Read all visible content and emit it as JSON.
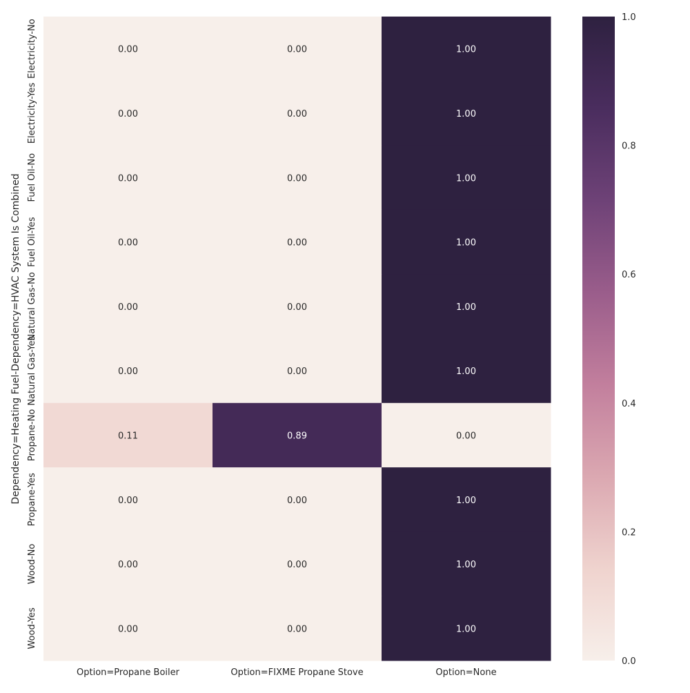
{
  "chart_data": {
    "type": "heatmap",
    "ylabel": "Dependency=Heating Fuel-Dependency=HVAC System Is Combined",
    "xlabel": "",
    "columns": [
      "Option=Propane Boiler",
      "Option=FIXME Propane Stove",
      "Option=None"
    ],
    "rows": [
      "Electricity-No",
      "Electricity-Yes",
      "Fuel Oil-No",
      "Fuel Oil-Yes",
      "Natural Gas-No",
      "Natural Gas-Yes",
      "Propane-No",
      "Propane-Yes",
      "Wood-No",
      "Wood-Yes"
    ],
    "values": [
      [
        0.0,
        0.0,
        1.0
      ],
      [
        0.0,
        0.0,
        1.0
      ],
      [
        0.0,
        0.0,
        1.0
      ],
      [
        0.0,
        0.0,
        1.0
      ],
      [
        0.0,
        0.0,
        1.0
      ],
      [
        0.0,
        0.0,
        1.0
      ],
      [
        0.11,
        0.89,
        0.0
      ],
      [
        0.0,
        0.0,
        1.0
      ],
      [
        0.0,
        0.0,
        1.0
      ],
      [
        0.0,
        0.0,
        1.0
      ]
    ],
    "value_format": "0.00",
    "colorbar": {
      "range": [
        0.0,
        1.0
      ],
      "ticks": [
        "0.0",
        "0.2",
        "0.4",
        "0.6",
        "0.8",
        "1.0"
      ],
      "colormap": [
        "#f7efea",
        "#efd3ce",
        "#dba8b1",
        "#c27f9d",
        "#9a5d8b",
        "#6e4277",
        "#4a2d5e",
        "#2e2140"
      ]
    },
    "grid": false
  }
}
